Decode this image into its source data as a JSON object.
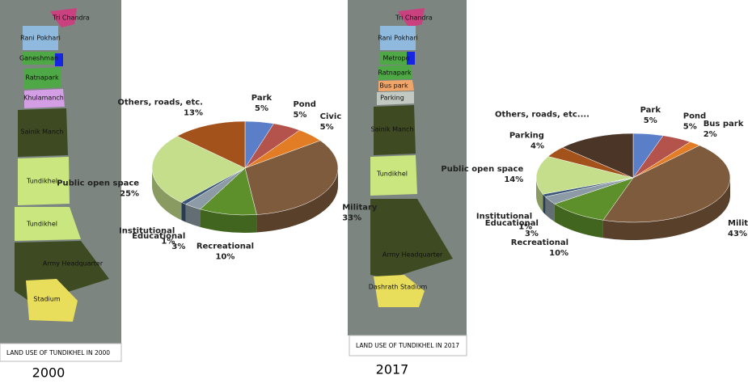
{
  "chart_data": [
    {
      "type": "pie",
      "categories": [
        "Park",
        "Pond",
        "Civic",
        "Military",
        "Recreational",
        "Educational",
        "Institutional",
        "Public open space",
        "Others, roads, etc."
      ],
      "values": [
        5,
        5,
        5,
        33,
        10,
        3,
        1,
        25,
        13
      ],
      "value_labels": [
        "5%",
        "5%",
        "5%",
        "33%",
        "10%",
        "3%",
        "1%",
        "25%",
        "13%"
      ],
      "colors": [
        "#5a7fc8",
        "#b4524c",
        "#e27d25",
        "#7e5b3d",
        "#5d8f2b",
        "#8d9ba6",
        "#3b5676",
        "#c5de8c",
        "#a4521c"
      ]
    },
    {
      "type": "pie",
      "categories": [
        "Park",
        "Pond",
        "Bus park",
        "Military",
        "Recreational",
        "Educational",
        "Institutional",
        "Public open space",
        "Parking",
        "Others, roads, etc...."
      ],
      "values": [
        5,
        5,
        2,
        43,
        10,
        3,
        1,
        14,
        4,
        13
      ],
      "value_labels": [
        "5%",
        "5%",
        "2%",
        "43%",
        "10%",
        "3%",
        "1%",
        "14%",
        "4%",
        null
      ],
      "colors": [
        "#5a7fc8",
        "#b4524c",
        "#e27d25",
        "#7e5b3d",
        "#5d8f2b",
        "#8d9ba6",
        "#3b5676",
        "#c5de8c",
        "#a4521c",
        "#4b3527"
      ]
    }
  ],
  "maps": [
    {
      "labels": [
        "Tri Chandra",
        "Rani Pokhari",
        "Ganeshman",
        "Ratnapark",
        "Khulamanch",
        "Sainik Manch",
        "Tundikhel",
        "Tundikhel",
        "Army Headquarter",
        "Stadium"
      ],
      "caption": "LAND USE OF TUNDIKHEL IN 2000",
      "year": "2000"
    },
    {
      "labels": [
        "Tri Chandra",
        "Rani Pokhari",
        "Metropo",
        "Ratnapark",
        "Bus park",
        "Parking",
        "Sainik Manch",
        "Tundikhel",
        "Army Headquarter",
        "Dashrath Stadium"
      ],
      "caption": "LAND USE OF TUNDIKHEL IN 2017",
      "year": "2017"
    }
  ]
}
